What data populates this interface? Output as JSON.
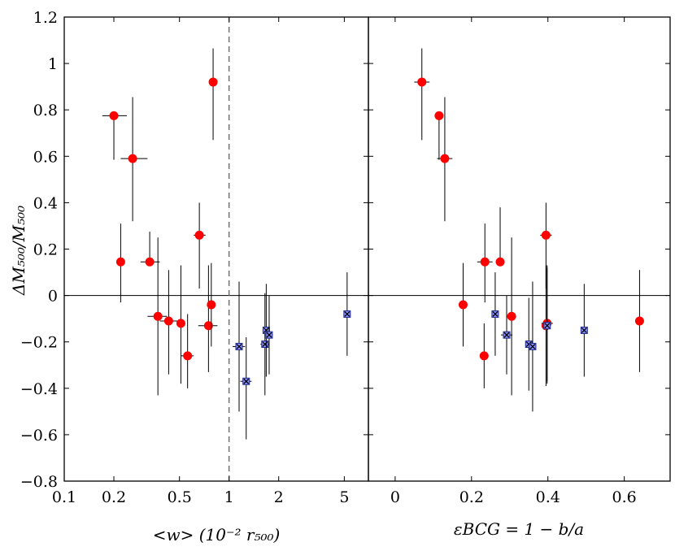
{
  "chart_data": [
    {
      "type": "scatter",
      "panel": "left",
      "x_scale": "log",
      "xlabel": "<w> (10⁻² r₅₀₀)",
      "ylabel": "ΔM₅₀₀/M₅₀₀",
      "xlim": [
        0.1,
        7.0
      ],
      "ylim": [
        -0.8,
        1.2
      ],
      "x_ticks": [
        0.1,
        0.2,
        0.5,
        1,
        2,
        5
      ],
      "x_tick_labels": [
        "0.1",
        "0.2",
        "0.5",
        "1",
        "2",
        "5"
      ],
      "y_ticks": [
        1.2,
        1.0,
        0.8,
        0.6,
        0.4,
        0.2,
        0.0,
        -0.2,
        -0.4,
        -0.6,
        -0.8
      ],
      "y_tick_labels": [
        "1.2",
        "1",
        "0.8",
        "0.6",
        "0.4",
        "0.2",
        "0",
        "−0.2",
        "−0.4",
        "−0.6",
        "−0.8"
      ],
      "reference_lines": {
        "horizontal_y": 0,
        "vertical_dashed_x": 1.0
      },
      "series": [
        {
          "name": "red-circles",
          "marker": "circle",
          "color": "#ff0000",
          "points": [
            {
              "x": 0.2,
              "y": 0.775,
              "xerr": [
                0.03,
                0.04
              ],
              "yerr": [
                0.19,
                0.0
              ]
            },
            {
              "x": 0.26,
              "y": 0.59,
              "xerr": [
                0.04,
                0.06
              ],
              "yerr": [
                0.27,
                0.265
              ]
            },
            {
              "x": 0.8,
              "y": 0.92,
              "xerr": [
                0.0,
                0.0
              ],
              "yerr": [
                0.25,
                0.145
              ]
            },
            {
              "x": 0.22,
              "y": 0.145,
              "xerr": [
                0.0,
                0.0
              ],
              "yerr": [
                0.175,
                0.165
              ]
            },
            {
              "x": 0.33,
              "y": 0.145,
              "xerr": [
                0.04,
                0.05
              ],
              "yerr": [
                0.0,
                0.13
              ]
            },
            {
              "x": 0.66,
              "y": 0.26,
              "xerr": [
                0.05,
                0.06
              ],
              "yerr": [
                0.23,
                0.14
              ]
            },
            {
              "x": 0.37,
              "y": -0.09,
              "xerr": [
                0.05,
                0.05
              ],
              "yerr": [
                0.34,
                0.34
              ]
            },
            {
              "x": 0.43,
              "y": -0.11,
              "xerr": [
                0.05,
                0.06
              ],
              "yerr": [
                0.23,
                0.22
              ]
            },
            {
              "x": 0.51,
              "y": -0.12,
              "xerr": [
                0.0,
                0.0
              ],
              "yerr": [
                0.26,
                0.25
              ]
            },
            {
              "x": 0.56,
              "y": -0.26,
              "xerr": [
                0.05,
                0.05
              ],
              "yerr": [
                0.14,
                0.18
              ]
            },
            {
              "x": 0.75,
              "y": -0.13,
              "xerr": [
                0.1,
                0.1
              ],
              "yerr": [
                0.2,
                0.26
              ]
            },
            {
              "x": 0.78,
              "y": -0.04,
              "xerr": [
                0.0,
                0.0
              ],
              "yerr": [
                0.18,
                0.18
              ]
            }
          ]
        },
        {
          "name": "blue-crosses",
          "marker": "square-x",
          "color": "#8a8fff",
          "points": [
            {
              "x": 1.15,
              "y": -0.22,
              "xerr": [
                0.1,
                0.1
              ],
              "yerr": [
                0.28,
                0.28
              ]
            },
            {
              "x": 1.27,
              "y": -0.37,
              "xerr": [
                0.1,
                0.1
              ],
              "yerr": [
                0.25,
                0.19
              ]
            },
            {
              "x": 1.65,
              "y": -0.21,
              "xerr": [
                0.1,
                0.1
              ],
              "yerr": [
                0.22,
                0.22
              ]
            },
            {
              "x": 1.68,
              "y": -0.15,
              "xerr": [
                0.0,
                0.0
              ],
              "yerr": [
                0.2,
                0.2
              ]
            },
            {
              "x": 1.75,
              "y": -0.17,
              "xerr": [
                0.0,
                0.0
              ],
              "yerr": [
                0.17,
                0.17
              ]
            },
            {
              "x": 5.2,
              "y": -0.08,
              "xerr": [
                0.0,
                0.0
              ],
              "yerr": [
                0.18,
                0.18
              ]
            }
          ]
        }
      ]
    },
    {
      "type": "scatter",
      "panel": "right",
      "x_scale": "linear",
      "xlabel": "εBCG = 1 − b/a",
      "ylabel": "",
      "xlim": [
        -0.07,
        0.72
      ],
      "ylim": [
        -0.8,
        1.2
      ],
      "x_ticks": [
        0,
        0.2,
        0.4,
        0.6
      ],
      "x_tick_labels": [
        "0",
        "0.2",
        "0.4",
        "0.6"
      ],
      "reference_lines": {
        "horizontal_y": 0
      },
      "series": [
        {
          "name": "red-circles",
          "marker": "circle",
          "color": "#ff0000",
          "points": [
            {
              "x": 0.07,
              "y": 0.92,
              "xerr": [
                0.02,
                0.02
              ],
              "yerr": [
                0.25,
                0.145
              ]
            },
            {
              "x": 0.115,
              "y": 0.775,
              "xerr": [
                0.0,
                0.0
              ],
              "yerr": [
                0.19,
                0.0
              ]
            },
            {
              "x": 0.13,
              "y": 0.59,
              "xerr": [
                0.02,
                0.02
              ],
              "yerr": [
                0.27,
                0.265
              ]
            },
            {
              "x": 0.235,
              "y": 0.145,
              "xerr": [
                0.02,
                0.02
              ],
              "yerr": [
                0.175,
                0.165
              ]
            },
            {
              "x": 0.275,
              "y": 0.145,
              "xerr": [
                0.0,
                0.0
              ],
              "yerr": [
                0.0,
                0.235
              ]
            },
            {
              "x": 0.395,
              "y": 0.26,
              "xerr": [
                0.015,
                0.015
              ],
              "yerr": [
                0.23,
                0.14
              ]
            },
            {
              "x": 0.178,
              "y": -0.04,
              "xerr": [
                0.0,
                0.0
              ],
              "yerr": [
                0.18,
                0.18
              ]
            },
            {
              "x": 0.305,
              "y": -0.09,
              "xerr": [
                0.0,
                0.0
              ],
              "yerr": [
                0.34,
                0.34
              ]
            },
            {
              "x": 0.395,
              "y": -0.13,
              "xerr": [
                0.0,
                0.0
              ],
              "yerr": [
                0.26,
                0.26
              ]
            },
            {
              "x": 0.398,
              "y": -0.12,
              "xerr": [
                0.015,
                0.015
              ],
              "yerr": [
                0.25,
                0.25
              ]
            },
            {
              "x": 0.233,
              "y": -0.26,
              "xerr": [
                0.0,
                0.0
              ],
              "yerr": [
                0.14,
                0.14
              ]
            },
            {
              "x": 0.64,
              "y": -0.11,
              "xerr": [
                0.0,
                0.0
              ],
              "yerr": [
                0.22,
                0.22
              ]
            }
          ]
        },
        {
          "name": "blue-crosses",
          "marker": "square-x",
          "color": "#8a8fff",
          "points": [
            {
              "x": 0.262,
              "y": -0.08,
              "xerr": [
                0.0,
                0.0
              ],
              "yerr": [
                0.18,
                0.18
              ]
            },
            {
              "x": 0.292,
              "y": -0.17,
              "xerr": [
                0.015,
                0.015
              ],
              "yerr": [
                0.17,
                0.17
              ]
            },
            {
              "x": 0.35,
              "y": -0.21,
              "xerr": [
                0.0,
                0.0
              ],
              "yerr": [
                0.2,
                0.2
              ]
            },
            {
              "x": 0.36,
              "y": -0.22,
              "xerr": [
                0.0,
                0.0
              ],
              "yerr": [
                0.28,
                0.28
              ]
            },
            {
              "x": 0.398,
              "y": -0.13,
              "xerr": [
                0.0,
                0.0
              ],
              "yerr": [
                0.25,
                0.25
              ]
            },
            {
              "x": 0.495,
              "y": -0.15,
              "xerr": [
                0.0,
                0.0
              ],
              "yerr": [
                0.2,
                0.2
              ]
            }
          ]
        }
      ]
    }
  ]
}
